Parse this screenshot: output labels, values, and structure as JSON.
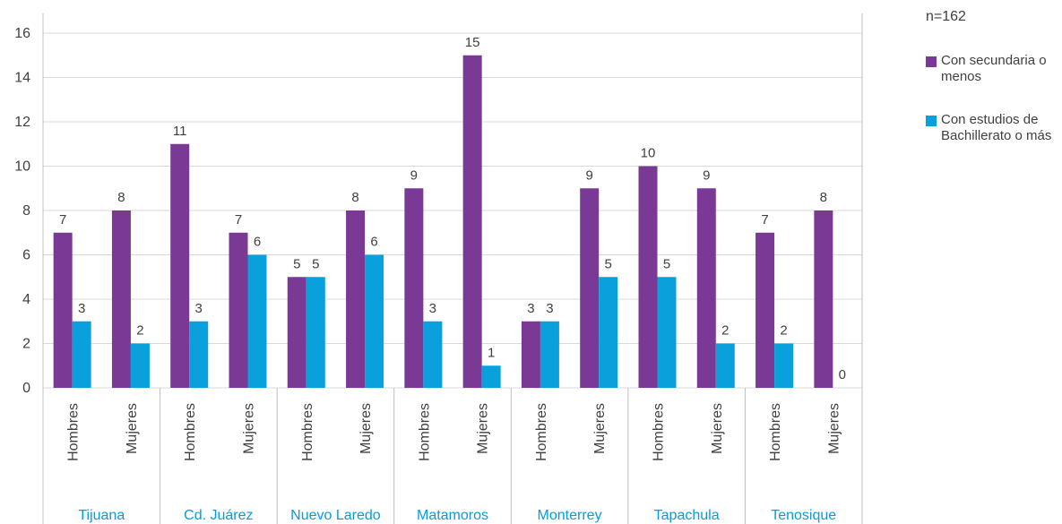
{
  "chart_data": {
    "type": "bar",
    "annotation": "n=162",
    "groups": [
      "Tijuana",
      "Cd. Juárez",
      "Nuevo Laredo",
      "Matamoros",
      "Monterrey",
      "Tapachula",
      "Tenosique"
    ],
    "categories": [
      "Hombres",
      "Mujeres",
      "Hombres",
      "Mujeres",
      "Hombres",
      "Mujeres",
      "Hombres",
      "Mujeres",
      "Hombres",
      "Mujeres",
      "Hombres",
      "Mujeres",
      "Hombres",
      "Mujeres"
    ],
    "series": [
      {
        "name": "Con secundaria o menos",
        "color": "#7b3996",
        "values": [
          7,
          8,
          11,
          7,
          5,
          8,
          9,
          15,
          3,
          9,
          10,
          9,
          7,
          8
        ]
      },
      {
        "name": "Con estudios de Bachillerato o más",
        "color": "#0aa0dc",
        "values": [
          3,
          2,
          3,
          6,
          5,
          6,
          3,
          1,
          3,
          5,
          5,
          2,
          2,
          0
        ]
      }
    ],
    "ylim": [
      0,
      16
    ],
    "yticks": [
      0,
      2,
      4,
      6,
      8,
      10,
      12,
      14,
      16
    ],
    "grid": true,
    "legend": "right"
  }
}
